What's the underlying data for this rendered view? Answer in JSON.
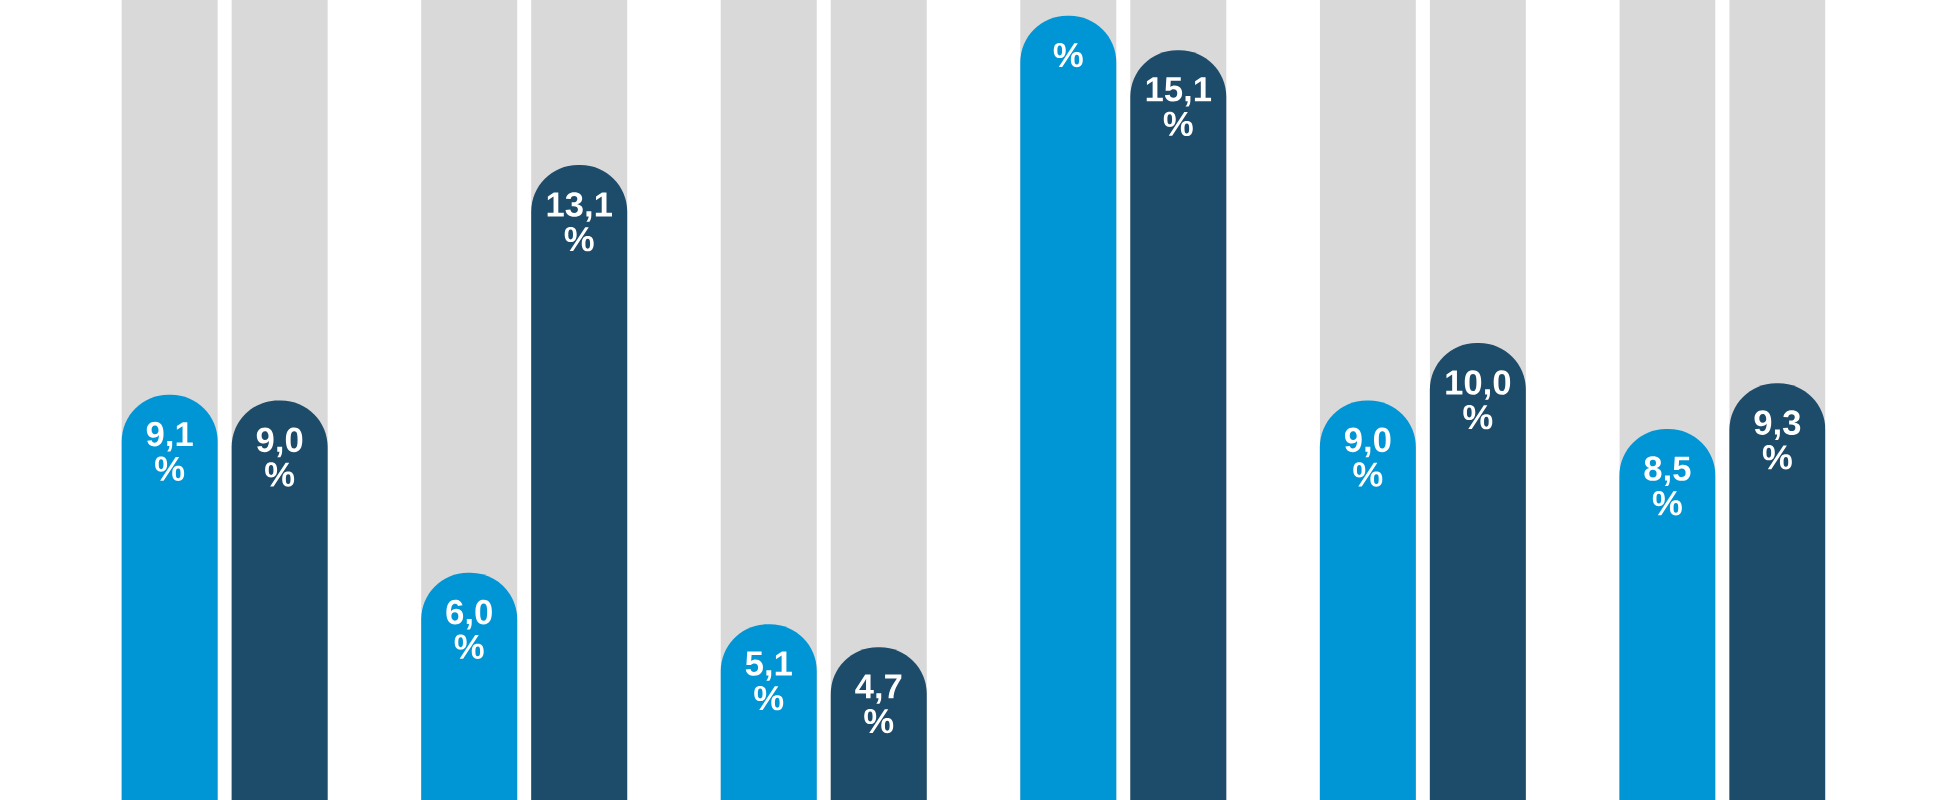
{
  "chart_data": {
    "type": "bar",
    "categories": [
      null,
      null,
      null,
      null,
      null,
      null
    ],
    "series": [
      {
        "color": "#0096d6",
        "values": [
          9.1,
          6.0,
          5.1,
          15.7,
          9.0,
          8.5
        ],
        "value_labels": [
          "9,1 %",
          "6,0 %",
          "5,1 %",
          "%",
          "9,0 %",
          "8,5 %"
        ]
      },
      {
        "color": "#1d4b6a",
        "values": [
          9.0,
          13.1,
          4.7,
          15.1,
          10.0,
          9.3
        ],
        "value_labels": [
          "9,0 %",
          "13,1 %",
          "4,7 %",
          "15,1 %",
          "10,0 %",
          "9,3 %"
        ]
      }
    ]
  }
}
